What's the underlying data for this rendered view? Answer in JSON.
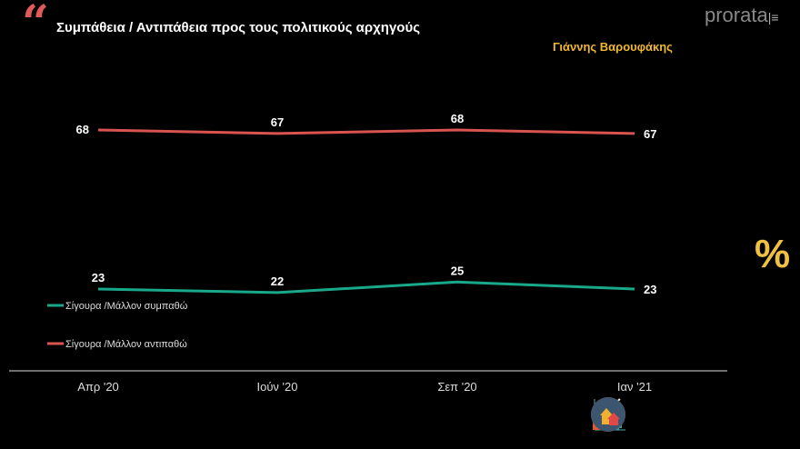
{
  "header": {
    "title": "Συμπάθεια / Αντιπάθεια προς τους πολιτικούς αρχηγούς",
    "subtitle": "Γιάννης Βαρουφάκης",
    "logo": "prorata",
    "quote_icon": "quote-icon",
    "percent_symbol": "%"
  },
  "chart_data": {
    "type": "line",
    "title": "Συμπάθεια / Αντιπάθεια προς τους πολιτικούς αρχηγούς",
    "subtitle": "Γιάννης Βαρουφάκης",
    "categories": [
      "Απρ '20",
      "Ιούν '20",
      "Σεπ '20",
      "Ιαν '21"
    ],
    "ylim": [
      0,
      100
    ],
    "grid": false,
    "legend": "left",
    "series": [
      {
        "name": "Σίγουρα /Μάλλον συμπαθώ",
        "color": "#1aa88a",
        "values": [
          23,
          22,
          25,
          23
        ]
      },
      {
        "name": "Σίγουρα /Μάλλον αντιπαθώ",
        "color": "#d9534f",
        "values": [
          68,
          67,
          68,
          67
        ]
      }
    ]
  },
  "footer_icons": [
    "bar-chart-icon",
    "podium-icon",
    "growth-chart-icon",
    "houses-icon"
  ]
}
